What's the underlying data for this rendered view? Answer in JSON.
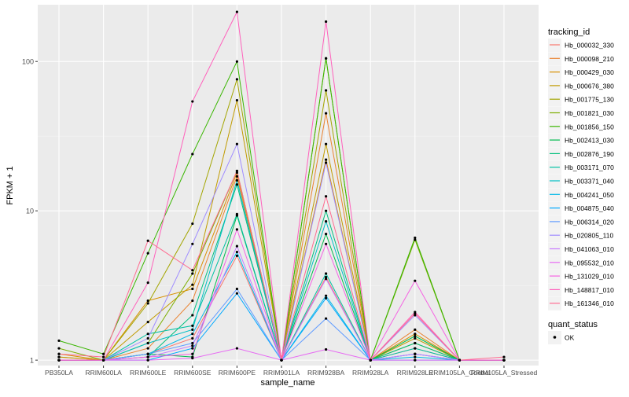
{
  "chart_data": {
    "type": "line",
    "xlabel": "sample_name",
    "ylabel": "FPKM + 1",
    "yscale": "log10",
    "ylim": [
      0.92,
      240
    ],
    "yticks": [
      {
        "value": 1,
        "label": "1"
      },
      {
        "value": 10,
        "label": "10"
      },
      {
        "value": 100,
        "label": "100"
      }
    ],
    "categories": [
      "PB350LA",
      "RRIM600LA",
      "RRIM600LE",
      "RRIM600SE",
      "RRIM600PE",
      "RRIM901LA",
      "RRIM928BA",
      "RRIM928LA",
      "RRIM928LE",
      "RRIM105LA_Control",
      "RRIM105LA_Stressed"
    ],
    "legend": {
      "title": "tracking_id",
      "placement": "right",
      "shape_title": "quant_status",
      "shape_entries": [
        "OK"
      ]
    },
    "series": [
      {
        "name": "Hb_000032_330",
        "color": "#F8766D",
        "values": [
          1.05,
          1.0,
          1.1,
          1.4,
          5.0,
          1.0,
          3.6,
          1.0,
          1.2,
          1.0,
          1.0
        ]
      },
      {
        "name": "Hb_000098_210",
        "color": "#EA8331",
        "values": [
          1.0,
          1.0,
          1.2,
          2.5,
          17,
          1.0,
          45,
          1.0,
          1.6,
          1.0,
          1.0
        ]
      },
      {
        "name": "Hb_000429_030",
        "color": "#D89000",
        "values": [
          1.1,
          1.0,
          2.5,
          3.0,
          18,
          1.0,
          22,
          1.0,
          1.5,
          1.0,
          1.0
        ]
      },
      {
        "name": "Hb_000676_380",
        "color": "#C09B00",
        "values": [
          1.05,
          1.0,
          1.8,
          3.2,
          55,
          1.0,
          28,
          1.0,
          1.4,
          1.0,
          1.0
        ]
      },
      {
        "name": "Hb_001775_130",
        "color": "#A3A500",
        "values": [
          1.0,
          1.0,
          2.4,
          8.2,
          76,
          1.0,
          64,
          1.0,
          1.3,
          1.0,
          1.0
        ]
      },
      {
        "name": "Hb_001821_030",
        "color": "#7CAE00",
        "values": [
          1.2,
          1.0,
          1.3,
          3.8,
          18.5,
          1.0,
          105,
          1.0,
          6.4,
          1.0,
          1.0
        ]
      },
      {
        "name": "Hb_001856_150",
        "color": "#39B600",
        "values": [
          1.35,
          1.1,
          5.2,
          24,
          100,
          1.0,
          105,
          1.0,
          6.6,
          1.0,
          1.0
        ]
      },
      {
        "name": "Hb_002413_030",
        "color": "#00BB4E",
        "values": [
          1.0,
          1.0,
          1.1,
          1.05,
          9.3,
          1.0,
          7.0,
          1.0,
          1.45,
          1.0,
          1.0
        ]
      },
      {
        "name": "Hb_002876_190",
        "color": "#00BF7D",
        "values": [
          1.0,
          1.0,
          1.05,
          2.0,
          15,
          1.0,
          10,
          1.0,
          1.3,
          1.0,
          1.0
        ]
      },
      {
        "name": "Hb_003171_070",
        "color": "#00C1A3",
        "values": [
          1.0,
          1.0,
          1.5,
          1.7,
          9.5,
          1.0,
          3.8,
          1.0,
          1.2,
          1.0,
          1.0
        ]
      },
      {
        "name": "Hb_003371_040",
        "color": "#00BFC4",
        "values": [
          1.0,
          1.0,
          1.3,
          1.6,
          16,
          1.0,
          8.5,
          1.0,
          1.1,
          1.0,
          1.0
        ]
      },
      {
        "name": "Hb_004241_050",
        "color": "#00B8E7",
        "values": [
          1.0,
          1.0,
          1.1,
          1.5,
          5.3,
          1.0,
          2.7,
          1.0,
          1.05,
          1.0,
          1.0
        ]
      },
      {
        "name": "Hb_004875_040",
        "color": "#00A9FF",
        "values": [
          1.0,
          1.0,
          1.0,
          1.2,
          2.8,
          1.0,
          2.6,
          1.0,
          1.0,
          1.0,
          1.0
        ]
      },
      {
        "name": "Hb_006314_020",
        "color": "#619CFF",
        "values": [
          1.0,
          1.0,
          1.1,
          1.3,
          3.0,
          1.0,
          1.9,
          1.0,
          1.1,
          1.0,
          1.0
        ]
      },
      {
        "name": "Hb_020805_110",
        "color": "#9F8CFF",
        "values": [
          1.0,
          1.0,
          1.4,
          6.0,
          28,
          1.0,
          21,
          1.0,
          2.0,
          1.0,
          1.0
        ]
      },
      {
        "name": "Hb_041063_010",
        "color": "#C77CFF",
        "values": [
          1.0,
          1.0,
          1.05,
          1.25,
          5.8,
          1.0,
          3.5,
          1.0,
          1.1,
          1.0,
          1.0
        ]
      },
      {
        "name": "Hb_095532_010",
        "color": "#E76BF3",
        "values": [
          1.0,
          1.0,
          1.0,
          1.03,
          1.2,
          1.0,
          1.18,
          1.0,
          1.0,
          1.0,
          1.0
        ]
      },
      {
        "name": "Hb_131029_010",
        "color": "#F564E3",
        "values": [
          1.0,
          1.0,
          1.05,
          1.1,
          7.5,
          1.0,
          6.0,
          1.0,
          3.4,
          1.0,
          1.0
        ]
      },
      {
        "name": "Hb_148817_010",
        "color": "#FF62BC",
        "values": [
          1.0,
          1.0,
          3.3,
          54,
          215,
          1.0,
          185,
          1.0,
          2.1,
          1.0,
          1.0
        ]
      },
      {
        "name": "Hb_161346_010",
        "color": "#FF6C91",
        "values": [
          1.1,
          1.05,
          6.3,
          4.0,
          18.5,
          1.0,
          12.5,
          1.0,
          2.05,
          1.0,
          1.05
        ]
      }
    ]
  }
}
